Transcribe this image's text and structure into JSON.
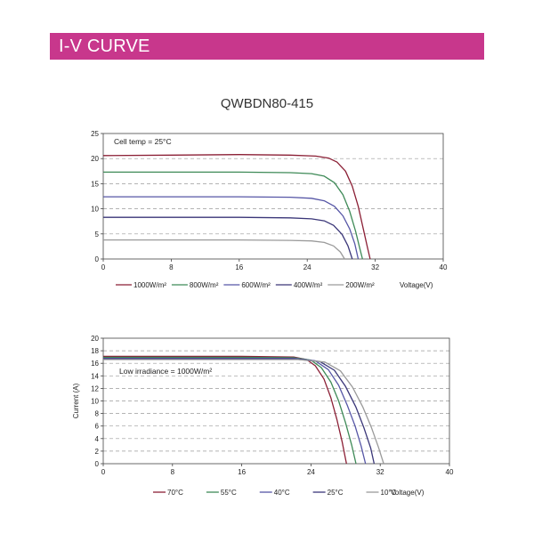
{
  "header": {
    "title": "I-V CURVE",
    "accent_color": "#c8378c"
  },
  "product": {
    "model": "QWBDN80-415"
  },
  "chart_data": [
    {
      "type": "line",
      "title": "QWBDN80-415",
      "annotation": "Cell temp = 25°C",
      "xlabel": "Voltage(V)",
      "ylabel": "",
      "xlim": [
        0,
        40
      ],
      "ylim": [
        0,
        25
      ],
      "x_ticks": [
        0,
        8,
        16,
        24,
        32,
        40
      ],
      "y_ticks": [
        0,
        5,
        10,
        15,
        20,
        25
      ],
      "grid": "dashed-horizontal",
      "legend_position": "bottom",
      "series": [
        {
          "name": "1000W/m²",
          "color": "#8b1f35",
          "points": [
            [
              0,
              20.6
            ],
            [
              8,
              20.7
            ],
            [
              16,
              20.8
            ],
            [
              22,
              20.7
            ],
            [
              25,
              20.5
            ],
            [
              26.5,
              20.1
            ],
            [
              27.5,
              19.3
            ],
            [
              28.5,
              17.5
            ],
            [
              29.3,
              14.5
            ],
            [
              30,
              10.5
            ],
            [
              30.6,
              6.0
            ],
            [
              31.1,
              2.2
            ],
            [
              31.4,
              0
            ]
          ]
        },
        {
          "name": "800W/m²",
          "color": "#3e8a57",
          "points": [
            [
              0,
              17.3
            ],
            [
              8,
              17.3
            ],
            [
              16,
              17.3
            ],
            [
              22,
              17.2
            ],
            [
              24.5,
              17.0
            ],
            [
              26,
              16.5
            ],
            [
              27.2,
              15.2
            ],
            [
              28.2,
              12.8
            ],
            [
              29,
              9.5
            ],
            [
              29.7,
              5.5
            ],
            [
              30.2,
              2.0
            ],
            [
              30.5,
              0
            ]
          ]
        },
        {
          "name": "600W/m²",
          "color": "#5656a6",
          "points": [
            [
              0,
              12.4
            ],
            [
              8,
              12.4
            ],
            [
              16,
              12.4
            ],
            [
              22,
              12.3
            ],
            [
              24.5,
              12.1
            ],
            [
              26,
              11.6
            ],
            [
              27.2,
              10.5
            ],
            [
              28.2,
              8.6
            ],
            [
              29,
              6.0
            ],
            [
              29.6,
              3.0
            ],
            [
              30,
              0
            ]
          ]
        },
        {
          "name": "400W/m²",
          "color": "#3a3678",
          "points": [
            [
              0,
              8.3
            ],
            [
              8,
              8.3
            ],
            [
              16,
              8.3
            ],
            [
              22,
              8.2
            ],
            [
              24.5,
              8.0
            ],
            [
              26,
              7.6
            ],
            [
              27.1,
              6.7
            ],
            [
              28.1,
              4.9
            ],
            [
              28.8,
              2.6
            ],
            [
              29.3,
              0
            ]
          ]
        },
        {
          "name": "200W/m²",
          "color": "#9a9a9a",
          "points": [
            [
              0,
              3.8
            ],
            [
              8,
              3.8
            ],
            [
              16,
              3.8
            ],
            [
              22,
              3.7
            ],
            [
              24.5,
              3.6
            ],
            [
              26,
              3.3
            ],
            [
              27.1,
              2.6
            ],
            [
              27.9,
              1.4
            ],
            [
              28.4,
              0
            ]
          ]
        }
      ]
    },
    {
      "type": "line",
      "title": "",
      "annotation": "Low irradiance = 1000W/m²",
      "xlabel": "Voltage(V)",
      "ylabel": "Current (A)",
      "xlim": [
        0,
        40
      ],
      "ylim": [
        0,
        20
      ],
      "x_ticks": [
        0,
        8,
        16,
        24,
        32,
        40
      ],
      "y_ticks": [
        0,
        2,
        4,
        6,
        8,
        10,
        12,
        14,
        16,
        18,
        20
      ],
      "grid": "dashed-horizontal",
      "legend_position": "bottom",
      "series": [
        {
          "name": "70°C",
          "color": "#8b1f35",
          "points": [
            [
              0,
              17.1
            ],
            [
              16,
              17.1
            ],
            [
              22,
              17.0
            ],
            [
              23.5,
              16.6
            ],
            [
              24.5,
              15.6
            ],
            [
              25.5,
              13.5
            ],
            [
              26.3,
              10.5
            ],
            [
              27,
              7.0
            ],
            [
              27.6,
              3.5
            ],
            [
              28.1,
              0
            ]
          ]
        },
        {
          "name": "55°C",
          "color": "#3e8a57",
          "points": [
            [
              0,
              16.95
            ],
            [
              16,
              16.95
            ],
            [
              22,
              16.9
            ],
            [
              24,
              16.5
            ],
            [
              25.2,
              15.3
            ],
            [
              26.3,
              13.0
            ],
            [
              27.2,
              10.0
            ],
            [
              28,
              6.5
            ],
            [
              28.7,
              3.0
            ],
            [
              29.2,
              0
            ]
          ]
        },
        {
          "name": "40°C",
          "color": "#5656a6",
          "points": [
            [
              0,
              16.8
            ],
            [
              16,
              16.8
            ],
            [
              22,
              16.8
            ],
            [
              24.5,
              16.4
            ],
            [
              26,
              15.0
            ],
            [
              27.2,
              12.5
            ],
            [
              28.2,
              9.3
            ],
            [
              29.1,
              6.0
            ],
            [
              29.8,
              2.8
            ],
            [
              30.3,
              0
            ]
          ]
        },
        {
          "name": "25°C",
          "color": "#3a3678",
          "points": [
            [
              0,
              16.7
            ],
            [
              16,
              16.7
            ],
            [
              22,
              16.7
            ],
            [
              25,
              16.3
            ],
            [
              26.7,
              14.9
            ],
            [
              28,
              12.3
            ],
            [
              29.2,
              9.0
            ],
            [
              30.1,
              5.8
            ],
            [
              30.9,
              2.5
            ],
            [
              31.3,
              0
            ]
          ]
        },
        {
          "name": "10°C",
          "color": "#9a9a9a",
          "points": [
            [
              0,
              16.6
            ],
            [
              16,
              16.6
            ],
            [
              22.5,
              16.6
            ],
            [
              25.6,
              16.2
            ],
            [
              27.4,
              14.8
            ],
            [
              28.8,
              12.2
            ],
            [
              30,
              9.0
            ],
            [
              31,
              5.7
            ],
            [
              31.8,
              2.6
            ],
            [
              32.4,
              0
            ]
          ]
        }
      ]
    }
  ]
}
